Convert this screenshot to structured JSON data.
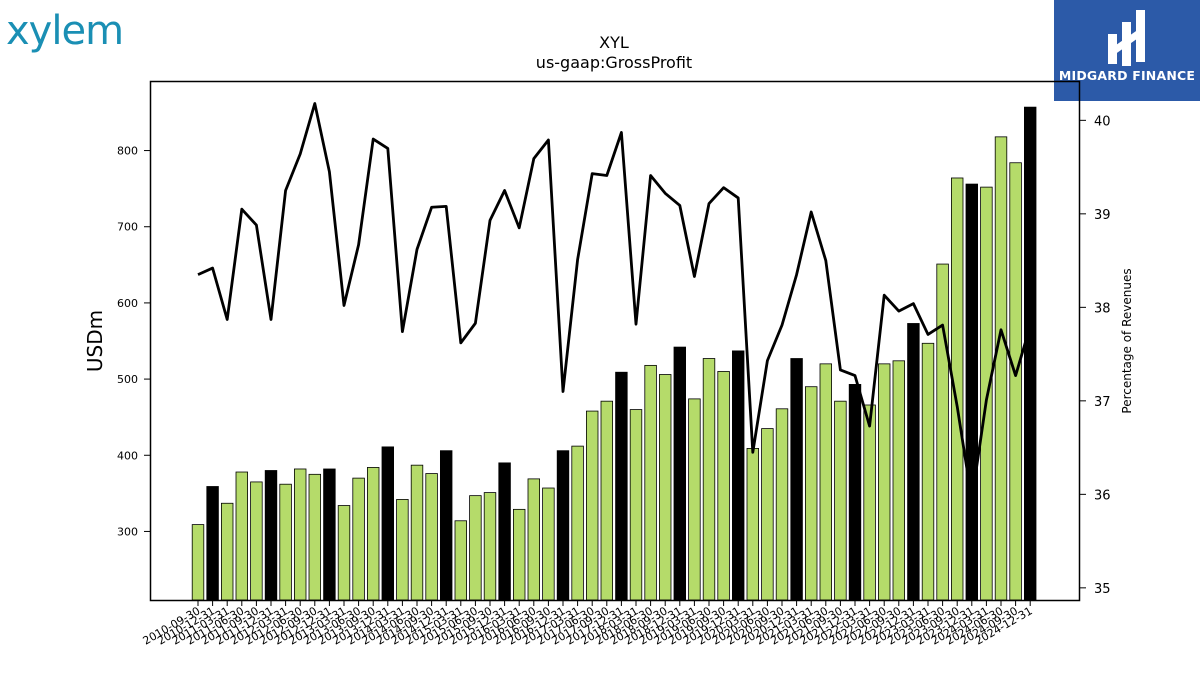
{
  "brand": {
    "logo_text": "xylem",
    "badge_text": "MIDGARD FINANCE"
  },
  "colors": {
    "bar_default": "#b5db6a",
    "bar_highlight": "#000000",
    "line": "#000000",
    "badge_bg": "#2c5aa8",
    "logo": "#1a8fb4"
  },
  "chart_data": {
    "type": "bar",
    "title": "XYL",
    "subtitle": "us-gaap:GrossProfit",
    "ylabel": "USDm",
    "y2label": "Percentage of Revenues",
    "ylim": [
      210,
      890
    ],
    "y2lim": [
      34.87,
      40.41
    ],
    "yticks": [
      300,
      400,
      500,
      600,
      700,
      800
    ],
    "y2ticks": [
      35,
      36,
      37,
      38,
      39,
      40
    ],
    "categories": [
      "2010-09-30",
      "2010-12-31",
      "2011-03-31",
      "2011-06-30",
      "2011-09-30",
      "2011-12-31",
      "2012-03-31",
      "2012-06-30",
      "2012-09-30",
      "2012-12-31",
      "2013-03-31",
      "2013-06-30",
      "2013-09-30",
      "2013-12-31",
      "2014-03-31",
      "2014-06-30",
      "2014-09-30",
      "2014-12-31",
      "2015-03-31",
      "2015-06-30",
      "2015-09-30",
      "2015-12-31",
      "2016-03-31",
      "2016-06-30",
      "2016-09-30",
      "2016-12-31",
      "2017-03-31",
      "2017-06-30",
      "2017-09-30",
      "2017-12-31",
      "2018-03-31",
      "2018-06-30",
      "2018-09-30",
      "2018-12-31",
      "2019-03-31",
      "2019-06-30",
      "2019-09-30",
      "2019-12-31",
      "2020-03-31",
      "2020-06-30",
      "2020-09-30",
      "2020-12-31",
      "2021-03-31",
      "2021-06-30",
      "2021-09-30",
      "2021-12-31",
      "2022-03-31",
      "2022-06-30",
      "2022-09-30",
      "2022-12-31",
      "2023-03-31",
      "2023-06-30",
      "2023-09-30",
      "2023-12-31",
      "2024-03-31",
      "2024-06-30",
      "2024-09-30",
      "2024-12-31"
    ],
    "xtick_labels": [
      "2010-09-30",
      "2010-12-31",
      "2011-03-31",
      "2011-06-30",
      "2011-09-30",
      "2011-12-31",
      "2012-03-31",
      "2012-06-30",
      "2012-09-30",
      "2012-12-31",
      "2013-03-31",
      "2013-06-30",
      "2013-09-30",
      "2013-12-31",
      "2014-03-31",
      "2014-06-30",
      "2014-09-30",
      "2014-12-31",
      "2015-03-31",
      "2015-06-30",
      "2015-09-30",
      "2015-12-31",
      "2016-03-31",
      "2016-06-30",
      "2016-09-30",
      "2016-12-31",
      "2017-03-31",
      "2017-06-30",
      "2017-09-30",
      "2017-12-31",
      "2018-03-31",
      "2018-06-30",
      "2018-09-30",
      "2018-12-31",
      "2019-03-31",
      "2019-06-30",
      "2019-09-30",
      "2019-12-31",
      "2020-03-31",
      "2020-06-30",
      "2020-09-30",
      "2020-12-31",
      "2021-03-31",
      "2021-06-30",
      "2021-09-30",
      "2021-12-31",
      "2022-03-31",
      "2022-06-30",
      "2022-09-30",
      "2022-12-31",
      "2023-03-31",
      "2023-06-30",
      "2023-09-30",
      "2023-12-31",
      "2024-03-31",
      "2024-06-30",
      "2024-09-30",
      "2024-12-31"
    ],
    "series": [
      {
        "type": "bar",
        "values": [
          309,
          359,
          337,
          378,
          365,
          380,
          362,
          382,
          375,
          382,
          334,
          370,
          384,
          411,
          342,
          387,
          376,
          406,
          314,
          347,
          351,
          390,
          329,
          369,
          357,
          406,
          412,
          458,
          471,
          509,
          460,
          518,
          506,
          542,
          474,
          527,
          510,
          537,
          409,
          435,
          461,
          527,
          490,
          520,
          471,
          493,
          466,
          520,
          524,
          573,
          547,
          651,
          764,
          756,
          752,
          818,
          784,
          857
        ]
      },
      {
        "type": "line",
        "values": [
          38.35,
          38.42,
          37.87,
          39.05,
          38.88,
          37.87,
          39.25,
          39.64,
          40.18,
          39.45,
          38.02,
          38.67,
          39.8,
          39.7,
          37.74,
          38.62,
          39.07,
          39.08,
          37.62,
          37.83,
          38.93,
          39.25,
          38.85,
          39.59,
          39.79,
          37.1,
          38.51,
          39.43,
          39.41,
          39.87,
          37.82,
          39.41,
          39.22,
          39.09,
          38.33,
          39.11,
          39.28,
          39.17,
          36.45,
          37.43,
          37.81,
          38.35,
          39.02,
          38.5,
          37.33,
          37.27,
          36.73,
          38.13,
          37.96,
          38.04,
          37.71,
          37.81,
          36.94,
          35.94,
          37.01,
          37.76,
          37.27,
          37.8
        ]
      }
    ],
    "highlight_indices": [
      1,
      5,
      9,
      13,
      17,
      21,
      25,
      29,
      33,
      37,
      41,
      45,
      49,
      53,
      57
    ]
  }
}
